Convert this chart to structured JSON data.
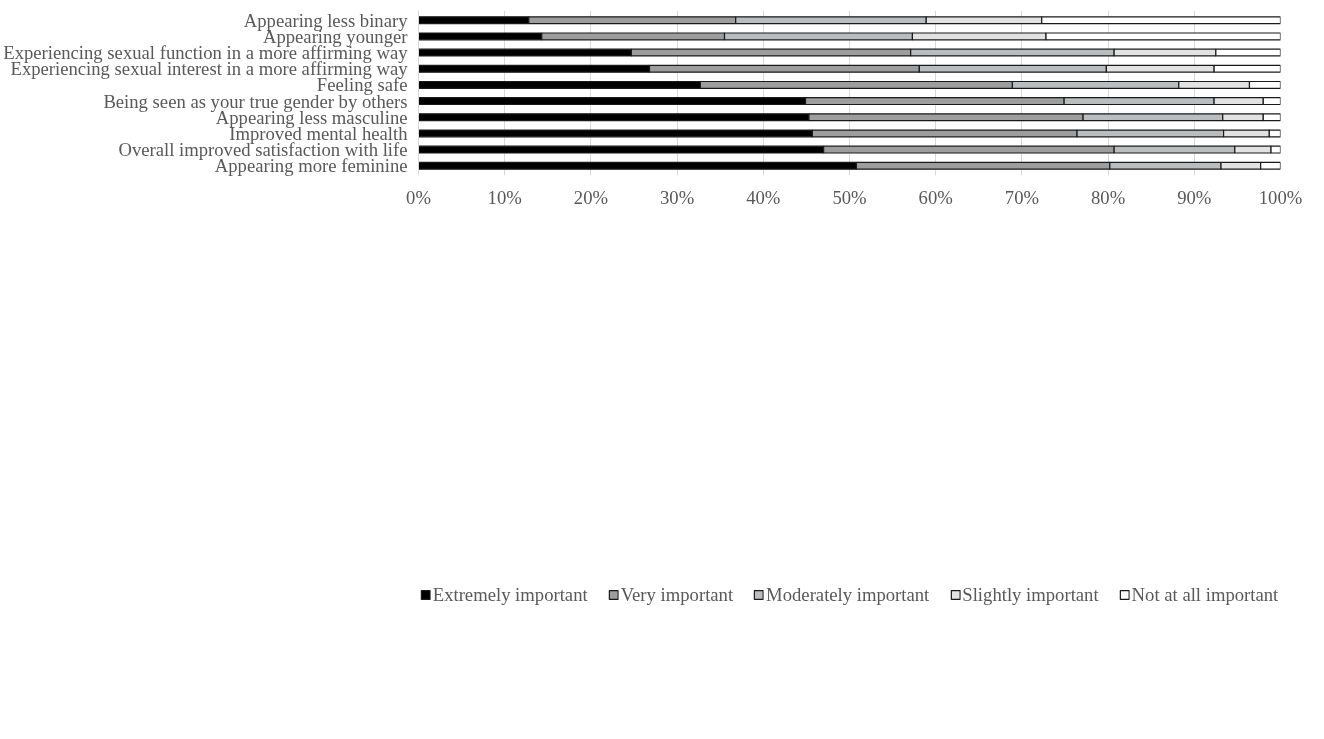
{
  "chart_data": {
    "type": "bar",
    "orientation": "horizontal",
    "stacked": true,
    "categories": [
      "Appearing less binary",
      "Appearing younger",
      "Experiencing sexual function in a more affirming way",
      "Experiencing sexual interest in a more affirming way",
      "Feeling safe",
      "Being seen as your true gender by others",
      "Appearing less masculine",
      "Improved mental health",
      "Overall improved satisfaction with life",
      "Appearing more feminine"
    ],
    "series": [
      {
        "name": "Extremely important",
        "color": "#000000",
        "values": [
          12.8,
          14.3,
          24.7,
          26.8,
          32.7,
          44.9,
          45.3,
          45.7,
          47.0,
          50.8
        ]
      },
      {
        "name": "Very important",
        "color": "#9d9d9d",
        "values": [
          24.0,
          21.2,
          32.4,
          31.3,
          36.2,
          30.0,
          31.8,
          30.7,
          33.7,
          29.4
        ]
      },
      {
        "name": "Moderately important",
        "color": "#bbbcbe",
        "values": [
          22.1,
          21.8,
          23.6,
          21.7,
          19.3,
          17.4,
          16.2,
          17.0,
          14.0,
          12.9
        ]
      },
      {
        "name": "Slightly important",
        "color": "#e2e2e2",
        "values": [
          13.4,
          15.5,
          11.8,
          12.5,
          8.2,
          5.7,
          4.7,
          5.3,
          4.2,
          4.6
        ]
      },
      {
        "name": "Not at all important",
        "color": "#ffffff",
        "values": [
          27.7,
          27.2,
          7.5,
          7.7,
          3.6,
          2.0,
          2.0,
          1.3,
          1.1,
          2.3
        ]
      }
    ],
    "xlim": [
      0,
      100
    ],
    "xticks": [
      {
        "value": 0,
        "label": "0%"
      },
      {
        "value": 10,
        "label": "10%"
      },
      {
        "value": 20,
        "label": "20%"
      },
      {
        "value": 30,
        "label": "30%"
      },
      {
        "value": 40,
        "label": "40%"
      },
      {
        "value": 50,
        "label": "50%"
      },
      {
        "value": 60,
        "label": "60%"
      },
      {
        "value": 70,
        "label": "70%"
      },
      {
        "value": 80,
        "label": "80%"
      },
      {
        "value": 90,
        "label": "90%"
      },
      {
        "value": 100,
        "label": "100%"
      }
    ],
    "grid": "x",
    "legend": "bottom"
  }
}
